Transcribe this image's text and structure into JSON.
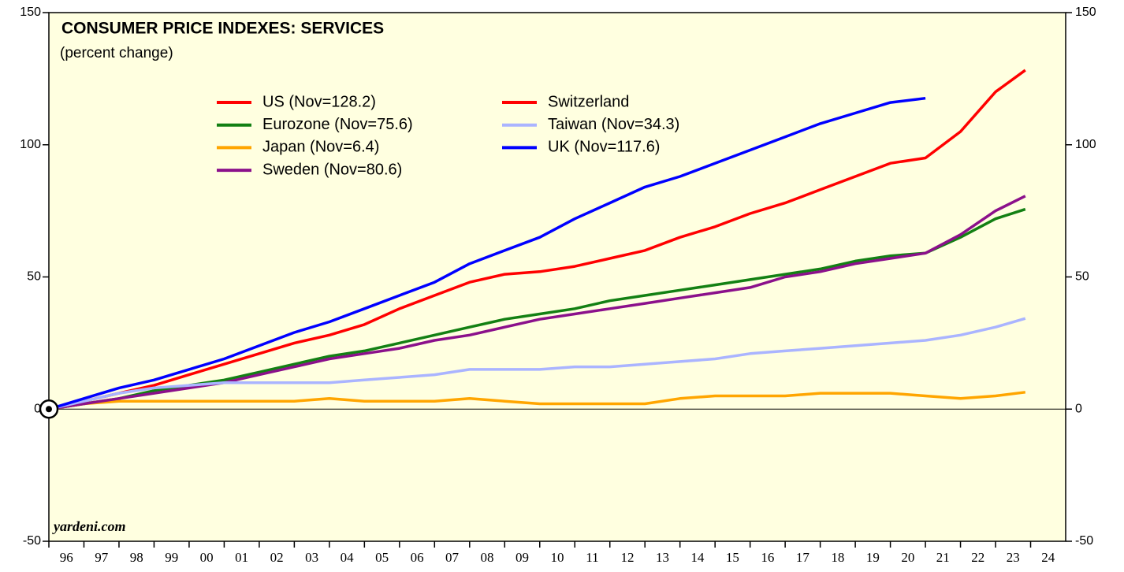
{
  "chart_data": {
    "type": "line",
    "title": "CONSUMER PRICE INDEXES: SERVICES",
    "subtitle": "(percent change)",
    "annotation": "yardeni.com",
    "x": [
      1996,
      1997,
      1998,
      1999,
      2000,
      2001,
      2002,
      2003,
      2004,
      2005,
      2006,
      2007,
      2008,
      2009,
      2010,
      2011,
      2012,
      2013,
      2014,
      2015,
      2016,
      2017,
      2018,
      2019,
      2020,
      2021,
      2022,
      2023,
      2023.85
    ],
    "series": [
      {
        "name": "US (Nov=128.2)",
        "color": "#ff0000",
        "values": [
          0,
          3,
          6,
          9,
          13,
          17,
          21,
          25,
          28,
          32,
          38,
          43,
          48,
          51,
          52,
          54,
          57,
          60,
          65,
          69,
          74,
          78,
          83,
          88,
          93,
          95,
          105,
          120,
          128.2
        ]
      },
      {
        "name": "Eurozone (Nov=75.6)",
        "color": "#138013",
        "values": [
          0,
          2,
          4,
          7,
          9,
          11,
          14,
          17,
          20,
          22,
          25,
          28,
          31,
          34,
          36,
          38,
          41,
          43,
          45,
          47,
          49,
          51,
          53,
          56,
          58,
          59,
          65,
          72,
          75.6
        ]
      },
      {
        "name": "Japan (Nov=6.4)",
        "color": "#ffa500",
        "values": [
          0,
          2,
          3,
          3,
          3,
          3,
          3,
          3,
          4,
          3,
          3,
          3,
          4,
          3,
          2,
          2,
          2,
          2,
          4,
          5,
          5,
          5,
          6,
          6,
          6,
          5,
          4,
          5,
          6.4
        ]
      },
      {
        "name": "Sweden (Nov=80.6)",
        "color": "#8b108b",
        "values": [
          0,
          2,
          4,
          6,
          8,
          10,
          13,
          16,
          19,
          21,
          23,
          26,
          28,
          31,
          34,
          36,
          38,
          40,
          42,
          44,
          46,
          50,
          52,
          55,
          57,
          59,
          66,
          75,
          80.6
        ]
      },
      {
        "name": "Switzerland",
        "color": "#ff0000",
        "values": [
          null,
          null,
          null,
          null,
          null,
          null,
          null,
          null,
          null,
          null,
          null,
          null,
          null,
          null,
          null,
          null,
          null,
          null,
          null,
          null,
          null,
          null,
          null,
          null,
          null,
          null,
          null,
          null,
          null
        ]
      },
      {
        "name": "Taiwan (Nov=34.3)",
        "color": "#aab4ff",
        "values": [
          0,
          3,
          6,
          8,
          9,
          10,
          10,
          10,
          10,
          11,
          12,
          13,
          15,
          15,
          15,
          16,
          16,
          17,
          18,
          19,
          21,
          22,
          23,
          24,
          25,
          26,
          28,
          31,
          34.3
        ]
      },
      {
        "name": "UK (Nov=117.6)",
        "color": "#0000ff",
        "values": [
          0,
          4,
          8,
          11,
          15,
          19,
          24,
          29,
          33,
          38,
          43,
          48,
          55,
          60,
          65,
          72,
          78,
          84,
          88,
          93,
          98,
          103,
          108,
          112,
          116,
          117.6,
          null,
          null,
          null
        ]
      }
    ],
    "xlim": [
      1996,
      2025
    ],
    "xticks": [
      {
        "value": 1996,
        "label": "96"
      },
      {
        "value": 1997,
        "label": "97"
      },
      {
        "value": 1998,
        "label": "98"
      },
      {
        "value": 1999,
        "label": "99"
      },
      {
        "value": 2000,
        "label": "00"
      },
      {
        "value": 2001,
        "label": "01"
      },
      {
        "value": 2002,
        "label": "02"
      },
      {
        "value": 2003,
        "label": "03"
      },
      {
        "value": 2004,
        "label": "04"
      },
      {
        "value": 2005,
        "label": "05"
      },
      {
        "value": 2006,
        "label": "06"
      },
      {
        "value": 2007,
        "label": "07"
      },
      {
        "value": 2008,
        "label": "08"
      },
      {
        "value": 2009,
        "label": "09"
      },
      {
        "value": 2010,
        "label": "10"
      },
      {
        "value": 2011,
        "label": "11"
      },
      {
        "value": 2012,
        "label": "12"
      },
      {
        "value": 2013,
        "label": "13"
      },
      {
        "value": 2014,
        "label": "14"
      },
      {
        "value": 2015,
        "label": "15"
      },
      {
        "value": 2016,
        "label": "16"
      },
      {
        "value": 2017,
        "label": "17"
      },
      {
        "value": 2018,
        "label": "18"
      },
      {
        "value": 2019,
        "label": "19"
      },
      {
        "value": 2020,
        "label": "20"
      },
      {
        "value": 2021,
        "label": "21"
      },
      {
        "value": 2022,
        "label": "22"
      },
      {
        "value": 2023,
        "label": "23"
      },
      {
        "value": 2024,
        "label": "24"
      }
    ],
    "ylim": [
      -50,
      150
    ],
    "yticks": [
      -50,
      0,
      50,
      100,
      150
    ]
  }
}
